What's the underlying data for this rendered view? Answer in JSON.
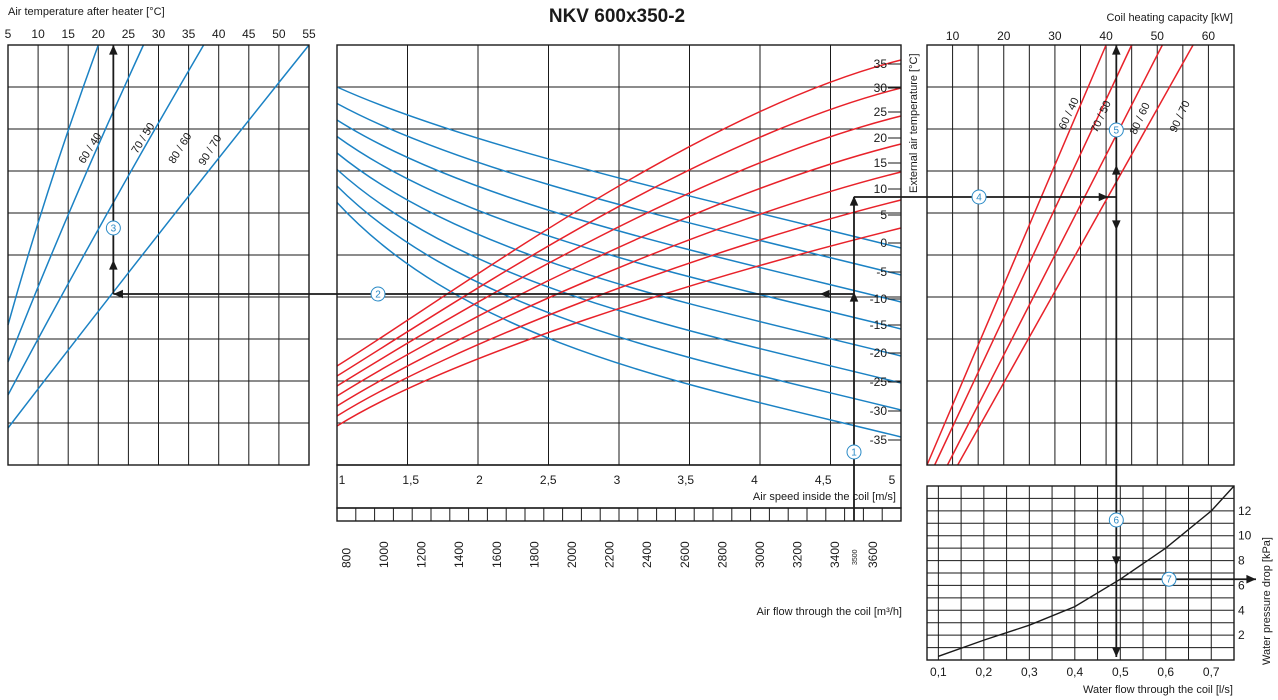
{
  "title": "NKV 600x350-2",
  "colors": {
    "blue": "#1b82c4",
    "red": "#e8222a",
    "black": "#1a1a1a",
    "marker": "#2a8ac6"
  },
  "chart_data": [
    {
      "id": "left",
      "type": "line",
      "xlabel": "Air temperature after heater [°C]",
      "xticks": [
        "5",
        "10",
        "15",
        "20",
        "25",
        "30",
        "35",
        "40",
        "45",
        "50",
        "55"
      ],
      "x_range": [
        5,
        55
      ],
      "series": [
        {
          "name": "60 / 40",
          "x": [
            5,
            20
          ],
          "y": [
            -8,
            16
          ]
        },
        {
          "name": "70 / 50",
          "x": [
            5,
            27.5
          ],
          "y": [
            -16,
            20
          ]
        },
        {
          "name": "80 / 60",
          "x": [
            5,
            37.5
          ],
          "y": [
            -23,
            28
          ]
        },
        {
          "name": "90 / 70",
          "x": [
            5,
            55
          ],
          "y": [
            -33,
            44
          ]
        }
      ],
      "series_labels": [
        "60 / 40",
        "70 / 50",
        "80 / 60",
        "90 / 70"
      ],
      "read_value": 22.5,
      "marker": "3"
    },
    {
      "id": "center",
      "type": "line",
      "right_axis_label": "External air temperature [°C]",
      "temperatures": [
        "-35",
        "-30",
        "-25",
        "-20",
        "-15",
        "-10",
        "-5",
        "0",
        "5",
        "10",
        "15",
        "20",
        "25",
        "30",
        "35"
      ],
      "speed_label": "Air speed inside the coil [m/s]",
      "speed_ticks": [
        "1",
        "1,5",
        "2",
        "2,5",
        "3",
        "3,5",
        "4",
        "4,5",
        "5"
      ],
      "speed_range": [
        1,
        5
      ],
      "flow_label": "Air flow through the coil [m³/h]",
      "flow_ticks": [
        "800",
        "1000",
        "1200",
        "1400",
        "1600",
        "1800",
        "2000",
        "2200",
        "2400",
        "2600",
        "2800",
        "3000",
        "3200",
        "3400",
        "3600"
      ],
      "flow_range": [
        750,
        3750
      ],
      "flow_read": "3500",
      "blue_curves": 8,
      "red_curves": 7,
      "markers": [
        "1",
        "2"
      ]
    },
    {
      "id": "right-top",
      "type": "line",
      "xlabel": "Coil heating capacity [kW]",
      "xticks": [
        "10",
        "20",
        "30",
        "40",
        "50",
        "60"
      ],
      "x_range": [
        5,
        65
      ],
      "series_labels": [
        "60 / 40",
        "70 / 50",
        "80 / 60",
        "90 / 70"
      ],
      "series": [
        {
          "name": "60 / 40",
          "x": [
            5,
            40
          ]
        },
        {
          "name": "70 / 50",
          "x": [
            6.5,
            45
          ]
        },
        {
          "name": "80 / 60",
          "x": [
            9,
            51
          ]
        },
        {
          "name": "90 / 70",
          "x": [
            11,
            57
          ]
        }
      ],
      "read_value": 42,
      "markers": [
        "4",
        "5"
      ]
    },
    {
      "id": "right-bottom",
      "type": "line",
      "xlabel": "Water flow through the coil [l/s]",
      "ylabel": "Water pressure drop [kPa]",
      "xticks": [
        "0,1",
        "0,2",
        "0,3",
        "0,4",
        "0,5",
        "0,6",
        "0,7"
      ],
      "yticks": [
        "2",
        "4",
        "6",
        "8",
        "10",
        "12"
      ],
      "x_range": [
        0.075,
        0.75
      ],
      "y_range": [
        0,
        14
      ],
      "curve": {
        "x": [
          0.1,
          0.2,
          0.3,
          0.4,
          0.5,
          0.6,
          0.7,
          0.75
        ],
        "y": [
          0.3,
          1.6,
          2.8,
          4.3,
          6.5,
          9,
          12,
          14
        ]
      },
      "read_x": 0.5,
      "read_y": 6.5,
      "markers": [
        "6",
        "7"
      ]
    }
  ]
}
